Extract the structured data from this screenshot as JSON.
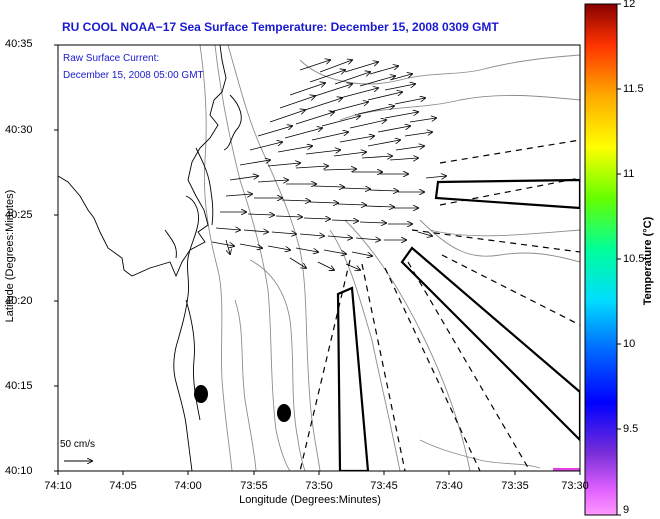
{
  "title": "RU COOL  NOAA−17  Sea Surface Temperature:  December 15, 2008 0309 GMT",
  "current_label": "Raw Surface Current:",
  "current_time": "December 15, 2008 05:00 GMT",
  "y_axis_title": "Latitude (Degrees:Minutes)",
  "x_axis_title": "Longitude (Degrees:Minutes)",
  "y_ticks": [
    "40:35",
    "40:30",
    "40:25",
    "40:20",
    "40:15",
    "40:10"
  ],
  "x_ticks": [
    "74:10",
    "74:05",
    "74:00",
    "73:55",
    "73:50",
    "73:45",
    "73:40",
    "73:35",
    "73:30"
  ],
  "colorbar_title": "Temperature (°C)",
  "colorbar_ticks": [
    "12",
    "11.5",
    "11",
    "10.5",
    "10",
    "9.5",
    "9"
  ],
  "scale_label": "50 cm/s",
  "colors": {
    "title": "#1a1ad0",
    "land_outline": "#000000",
    "bathymetry": "#8c8c8c",
    "vectors": "#000000"
  }
}
